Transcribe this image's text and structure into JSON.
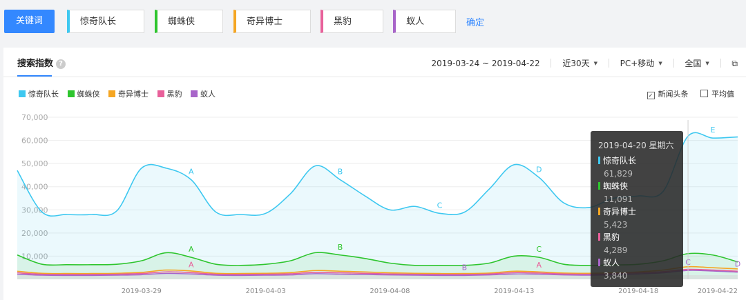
{
  "keywords": {
    "button_label": "关键词",
    "items": [
      {
        "label": "惊奇队长",
        "color": "#3ec8f0"
      },
      {
        "label": "蜘蛛侠",
        "color": "#2ec52e"
      },
      {
        "label": "奇异博士",
        "color": "#f5a623"
      },
      {
        "label": "黑豹",
        "color": "#e8609a"
      },
      {
        "label": "蚁人",
        "color": "#a865c9"
      }
    ],
    "confirm_label": "确定"
  },
  "panel": {
    "tab_label": "搜索指数",
    "help_icon": "?",
    "date_range": "2019-03-24 ~ 2019-04-22",
    "period": "近30天",
    "device": "PC+移动",
    "region": "全国",
    "legend": [
      "惊奇队长",
      "蜘蛛侠",
      "奇异博士",
      "黑豹",
      "蚁人"
    ],
    "news_label": "新闻头条",
    "news_checked": true,
    "average_label": "平均值",
    "average_checked": false
  },
  "tooltip": {
    "date": "2019-04-20 星期六",
    "rows": [
      {
        "name": "惊奇队长",
        "value": "61,829",
        "color": "#3ec8f0"
      },
      {
        "name": "蜘蛛侠",
        "value": "11,091",
        "color": "#2ec52e"
      },
      {
        "name": "奇异博士",
        "value": "5,423",
        "color": "#f5a623"
      },
      {
        "name": "黑豹",
        "value": "4,289",
        "color": "#e8609a"
      },
      {
        "name": "蚁人",
        "value": "3,840",
        "color": "#a865c9"
      }
    ]
  },
  "chart_data": {
    "type": "area",
    "ylim": [
      0,
      70000
    ],
    "yticks": [
      10000,
      20000,
      30000,
      40000,
      50000,
      60000,
      70000
    ],
    "ytick_labels": [
      "10,000",
      "20,000",
      "30,000",
      "40,000",
      "50,000",
      "60,000",
      "70,000"
    ],
    "x": [
      "2019-03-24",
      "2019-03-25",
      "2019-03-26",
      "2019-03-27",
      "2019-03-28",
      "2019-03-29",
      "2019-03-30",
      "2019-03-31",
      "2019-04-01",
      "2019-04-02",
      "2019-04-03",
      "2019-04-04",
      "2019-04-05",
      "2019-04-06",
      "2019-04-07",
      "2019-04-08",
      "2019-04-09",
      "2019-04-10",
      "2019-04-11",
      "2019-04-12",
      "2019-04-13",
      "2019-04-14",
      "2019-04-15",
      "2019-04-16",
      "2019-04-17",
      "2019-04-18",
      "2019-04-19",
      "2019-04-20",
      "2019-04-21",
      "2019-04-22"
    ],
    "xtick_labels": [
      "2019-03-29",
      "2019-04-03",
      "2019-04-08",
      "2019-04-13",
      "2019-04-18",
      "2019-04-22"
    ],
    "series": [
      {
        "name": "惊奇队长",
        "color": "#3ec8f0",
        "fill": true,
        "values": [
          47000,
          29000,
          28000,
          28000,
          29500,
          48000,
          48000,
          43000,
          29000,
          28000,
          28500,
          37000,
          49000,
          43000,
          36000,
          30000,
          31500,
          28500,
          29000,
          39000,
          49500,
          44000,
          33000,
          31000,
          35000,
          36000,
          38000,
          61829,
          61000,
          61500
        ]
      },
      {
        "name": "蜘蛛侠",
        "color": "#2ec52e",
        "fill": true,
        "values": [
          10500,
          6500,
          6300,
          6300,
          6500,
          8000,
          11500,
          9500,
          6500,
          6000,
          6500,
          8000,
          11500,
          10500,
          9000,
          7000,
          6000,
          6000,
          6000,
          7000,
          10000,
          9500,
          6500,
          6000,
          6200,
          6500,
          8000,
          11091,
          10500,
          7500
        ]
      },
      {
        "name": "奇异博士",
        "color": "#f5a623",
        "fill": false,
        "values": [
          3500,
          2600,
          2500,
          2500,
          2600,
          3000,
          4000,
          3600,
          2600,
          2500,
          2600,
          2900,
          3800,
          3500,
          3200,
          2800,
          2600,
          2500,
          2500,
          2700,
          3500,
          3200,
          2700,
          2600,
          2800,
          3200,
          4000,
          5423,
          5000,
          4500
        ]
      },
      {
        "name": "黑豹",
        "color": "#e8609a",
        "fill": false,
        "values": [
          2800,
          2200,
          2100,
          2100,
          2200,
          2500,
          3200,
          2900,
          2200,
          2100,
          2200,
          2400,
          3000,
          2800,
          2600,
          2300,
          2200,
          2100,
          2100,
          2300,
          2900,
          2700,
          2300,
          2200,
          2400,
          2800,
          3300,
          4289,
          4000,
          3500
        ]
      },
      {
        "name": "蚁人",
        "color": "#a865c9",
        "fill": false,
        "values": [
          2200,
          1800,
          1700,
          1700,
          1800,
          2000,
          2500,
          2300,
          1800,
          1700,
          1800,
          1900,
          2400,
          2200,
          2100,
          1900,
          1800,
          1700,
          1700,
          1900,
          2300,
          2200,
          1900,
          1800,
          2000,
          2300,
          2800,
          3840,
          3600,
          3100
        ]
      }
    ],
    "annotations": [
      {
        "series": 0,
        "x_index": 7,
        "label": "A"
      },
      {
        "series": 0,
        "x_index": 13,
        "label": "B"
      },
      {
        "series": 0,
        "x_index": 17,
        "label": "C"
      },
      {
        "series": 0,
        "x_index": 21,
        "label": "D"
      },
      {
        "series": 0,
        "x_index": 28,
        "label": "E"
      },
      {
        "series": 1,
        "x_index": 7,
        "label": "A"
      },
      {
        "series": 1,
        "x_index": 13,
        "label": "B"
      },
      {
        "series": 1,
        "x_index": 21,
        "label": "C"
      },
      {
        "series": 3,
        "x_index": 7,
        "label": "A"
      },
      {
        "series": 3,
        "x_index": 21,
        "label": "A"
      },
      {
        "series": 4,
        "x_index": 18,
        "label": "B"
      },
      {
        "series": 4,
        "x_index": 27,
        "label": "C"
      },
      {
        "series": 4,
        "x_index": 29,
        "label": "D"
      }
    ],
    "highlight_index": 27,
    "grid": true,
    "legend_position": "top-left"
  }
}
